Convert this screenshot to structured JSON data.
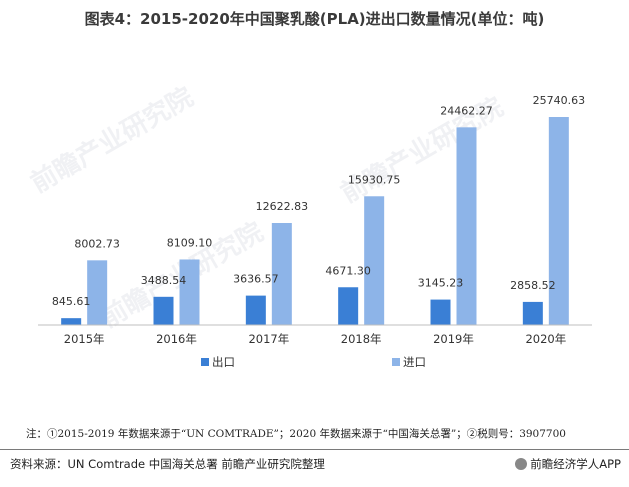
{
  "title": "图表4：2015-2020年中国聚乳酸(PLA)进出口数量情况(单位：吨)",
  "note": "注：①2015-2019 年数据来源于“UN COMTRADE”；2020 年数据来源于“中国海关总署”；②税则号：3907700",
  "source": "资料来源：UN Comtrade 中国海关总署 前瞻产业研究院整理",
  "brand": "前瞻经济学人APP",
  "watermark": "前瞻产业研究院",
  "colors": {
    "export": "#3a7fd5",
    "import": "#8db4e8",
    "axis": "#bfbfbf"
  },
  "chart_data": {
    "type": "bar",
    "categories": [
      "2015年",
      "2016年",
      "2017年",
      "2018年",
      "2019年",
      "2020年"
    ],
    "series": [
      {
        "name": "出口",
        "values": [
          845.61,
          3488.54,
          3636.57,
          4671.3,
          3145.23,
          2858.52
        ],
        "labels": [
          "845.61",
          "3488.54",
          "3636.57",
          "4671.30",
          "3145.23",
          "2858.52"
        ]
      },
      {
        "name": "进口",
        "values": [
          8002.73,
          8109.1,
          12622.83,
          15930.75,
          24462.27,
          25740.63
        ],
        "labels": [
          "8002.73",
          "8109.10",
          "12622.83",
          "15930.75",
          "24462.27",
          "25740.63"
        ]
      }
    ],
    "ylim": [
      0,
      25740.63
    ],
    "grid": false,
    "legend_position": "bottom"
  }
}
